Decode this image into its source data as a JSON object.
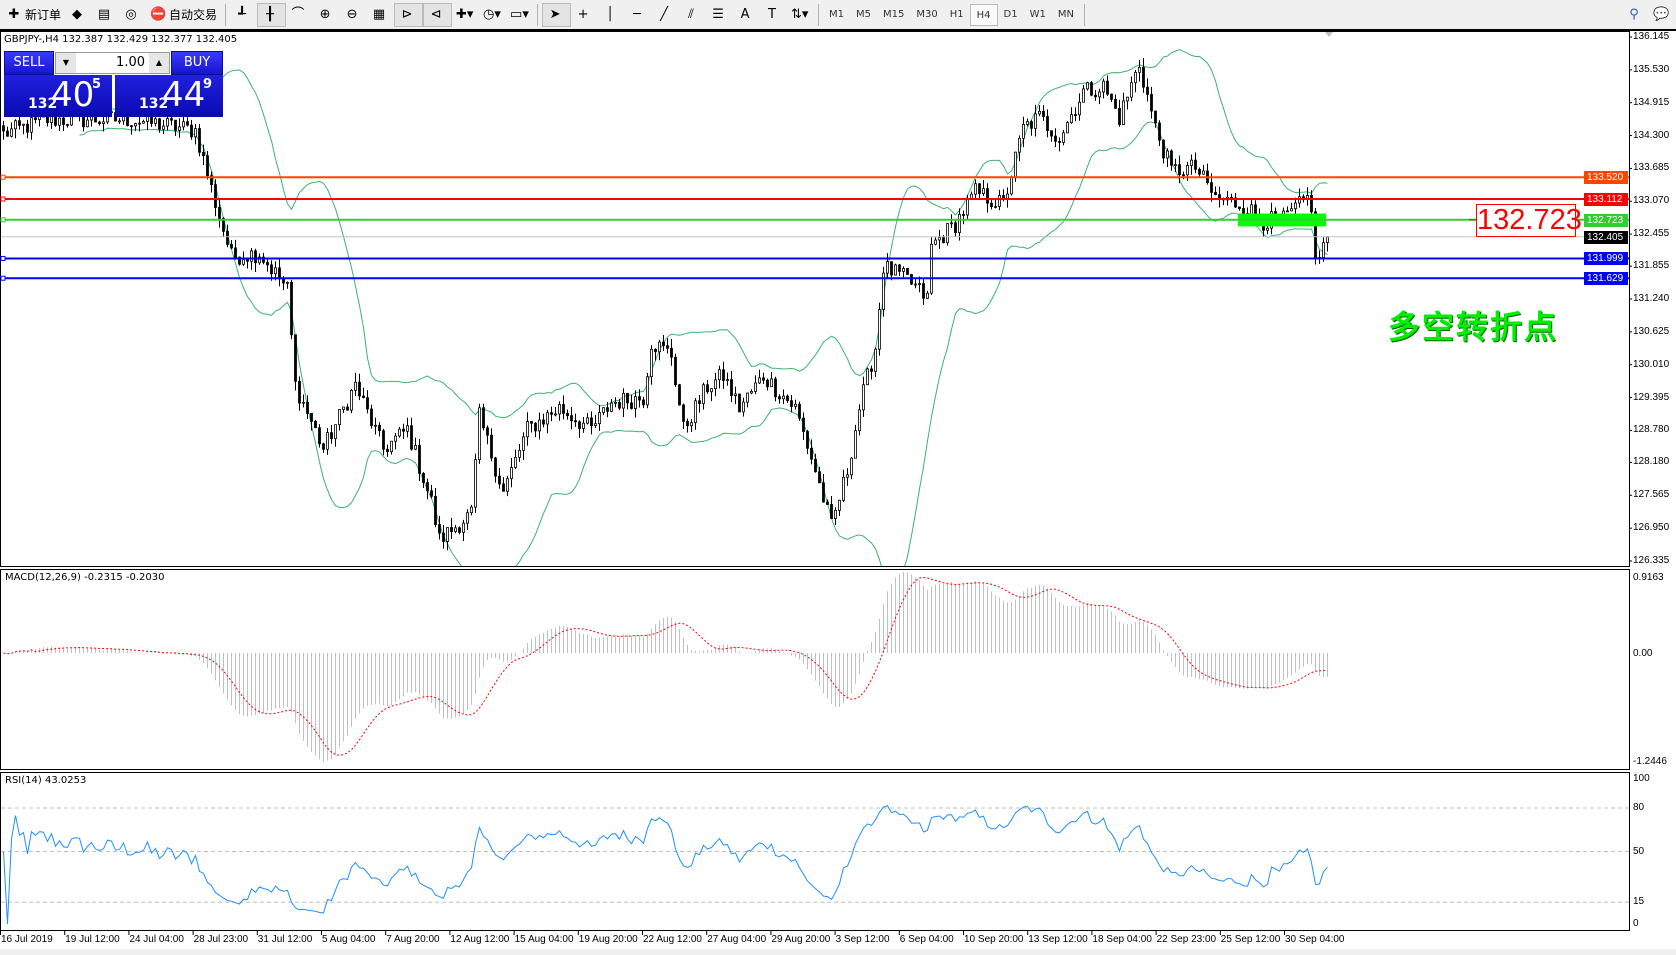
{
  "toolbar": {
    "left": [
      {
        "label": "新订单",
        "icon": "new-order-icon",
        "glyph": "✚"
      },
      {
        "label": "",
        "icon": "market-watch-icon",
        "glyph": "◆"
      },
      {
        "label": "",
        "icon": "navigator-icon",
        "glyph": "▤"
      },
      {
        "label": "",
        "icon": "signals-icon",
        "glyph": "◎"
      },
      {
        "label": "自动交易",
        "icon": "auto-trading-icon",
        "glyph": "⛔"
      }
    ],
    "chart_tools": [
      {
        "icon": "bar-chart-icon",
        "glyph": "┹"
      },
      {
        "icon": "candlestick-icon",
        "glyph": "╂",
        "active": true
      },
      {
        "icon": "line-chart-icon",
        "glyph": "⌒"
      },
      {
        "icon": "zoom-in-icon",
        "glyph": "⊕"
      },
      {
        "icon": "zoom-out-icon",
        "glyph": "⊖"
      },
      {
        "icon": "tile-windows-icon",
        "glyph": "▦"
      },
      {
        "icon": "autoscroll-icon",
        "glyph": "⊳",
        "active": true
      },
      {
        "icon": "chart-shift-icon",
        "glyph": "⊲",
        "active": true
      },
      {
        "icon": "indicators-icon",
        "glyph": "✚▾"
      },
      {
        "icon": "periods-icon",
        "glyph": "◷▾"
      },
      {
        "icon": "templates-icon",
        "glyph": "▭▾"
      }
    ],
    "draw_tools": [
      {
        "icon": "cursor-icon",
        "glyph": "➤",
        "active": true
      },
      {
        "icon": "crosshair-icon",
        "glyph": "+"
      },
      {
        "icon": "vertical-line-icon",
        "glyph": "│"
      },
      {
        "icon": "horizontal-line-icon",
        "glyph": "─"
      },
      {
        "icon": "trendline-icon",
        "glyph": "╱"
      },
      {
        "icon": "equidistant-channel-icon",
        "glyph": "⫽"
      },
      {
        "icon": "fibonacci-icon",
        "glyph": "☰"
      },
      {
        "icon": "text-icon",
        "glyph": "A"
      },
      {
        "icon": "text-label-icon",
        "glyph": "T"
      },
      {
        "icon": "arrows-icon",
        "glyph": "⇅▾"
      }
    ],
    "timeframes": [
      "M1",
      "M5",
      "M15",
      "M30",
      "H1",
      "H4",
      "D1",
      "W1",
      "MN"
    ],
    "active_timeframe": "H4",
    "right": [
      {
        "icon": "search-icon",
        "glyph": "⚲"
      },
      {
        "icon": "chat-icon",
        "glyph": "💬"
      }
    ]
  },
  "chart": {
    "header": "GBPJPY-,H4  132.387 132.429 132.377 132.405",
    "trade_panel": {
      "sell_label": "SELL",
      "buy_label": "BUY",
      "lot": "1.00",
      "sell_prefix": "132",
      "sell_big": "40",
      "sell_sup": "5",
      "buy_prefix": "132",
      "buy_big": "44",
      "buy_sup": "9"
    },
    "price_axis": [
      "136.145",
      "135.530",
      "134.915",
      "134.300",
      "133.685",
      "133.070",
      "132.455",
      "131.855",
      "131.240",
      "130.625",
      "130.010",
      "129.395",
      "128.780",
      "128.180",
      "127.565",
      "126.950",
      "126.335"
    ],
    "price_range": [
      126.335,
      136.145
    ],
    "hlines": [
      {
        "price": 133.52,
        "label": "133.520",
        "color": "#ff4500"
      },
      {
        "price": 133.112,
        "label": "133.112",
        "color": "#ff0000"
      },
      {
        "price": 132.723,
        "label": "132.723",
        "color": "#32cd32"
      },
      {
        "price": 132.405,
        "label": "132.405",
        "color": "#c0c0c0",
        "tag_color": "#000000"
      },
      {
        "price": 131.999,
        "label": "131.999",
        "color": "#0000ff"
      },
      {
        "price": 131.629,
        "label": "131.629",
        "color": "#0000ff"
      }
    ],
    "price_callout": "132.723",
    "annotation": "多空转折点",
    "zone": {
      "from_bar": 309,
      "to_bar": 331,
      "top": 132.84,
      "bottom": 132.6,
      "color": "#00ff00"
    },
    "close_path": [
      [
        0,
        134.33
      ],
      [
        11,
        134.6
      ],
      [
        32,
        134.6
      ],
      [
        48,
        134.4
      ],
      [
        53,
        133.04
      ],
      [
        57,
        132.04
      ],
      [
        64,
        132.1
      ],
      [
        71,
        131.43
      ],
      [
        73,
        129.63
      ],
      [
        80,
        128.43
      ],
      [
        88,
        129.63
      ],
      [
        95,
        128.43
      ],
      [
        101,
        128.8
      ],
      [
        107,
        127.44
      ],
      [
        109,
        126.73
      ],
      [
        117,
        127.23
      ],
      [
        119,
        129.03
      ],
      [
        125,
        127.63
      ],
      [
        131,
        128.8
      ],
      [
        139,
        129.2
      ],
      [
        147,
        128.8
      ],
      [
        152,
        129.3
      ],
      [
        160,
        129.4
      ],
      [
        162,
        130.43
      ],
      [
        167,
        130.2
      ],
      [
        170,
        128.8
      ],
      [
        176,
        129.6
      ],
      [
        180,
        129.8
      ],
      [
        184,
        129.2
      ],
      [
        190,
        129.8
      ],
      [
        198,
        129.2
      ],
      [
        203,
        128.03
      ],
      [
        207,
        126.98
      ],
      [
        211,
        128.03
      ],
      [
        214,
        129.2
      ],
      [
        218,
        130.33
      ],
      [
        220,
        131.84
      ],
      [
        226,
        131.6
      ],
      [
        231,
        131.25
      ],
      [
        232,
        132.23
      ],
      [
        238,
        132.65
      ],
      [
        243,
        133.24
      ],
      [
        250,
        133.0
      ],
      [
        255,
        134.44
      ],
      [
        259,
        134.64
      ],
      [
        264,
        134.26
      ],
      [
        270,
        135.13
      ],
      [
        275,
        135.22
      ],
      [
        279,
        134.64
      ],
      [
        284,
        135.64
      ],
      [
        288,
        134.44
      ],
      [
        292,
        133.64
      ],
      [
        298,
        133.7
      ],
      [
        303,
        133.13
      ],
      [
        310,
        133.0
      ],
      [
        315,
        132.7
      ],
      [
        320,
        132.72
      ],
      [
        326,
        133.12
      ],
      [
        327,
        133.0
      ],
      [
        328,
        131.9
      ],
      [
        331,
        132.405
      ]
    ],
    "bands_color": "#3cb371",
    "macd": {
      "label": "MACD(12,26,9) -0.2315 -0.2030",
      "axis": [
        "0.9163",
        "0.00",
        "-1.2446"
      ],
      "hist_color": "#c0c0c0",
      "signal_color": "#ff0000"
    },
    "rsi": {
      "label": "RSI(14) 43.0253",
      "axis": [
        "100",
        "80",
        "50",
        "15",
        "0"
      ],
      "levels": [
        80,
        50,
        15
      ],
      "color": "#1e90ff"
    },
    "time_axis": [
      "16 Jul 2019",
      "19 Jul 12:00",
      "24 Jul 04:00",
      "28 Jul 23:00",
      "31 Jul 12:00",
      "5 Aug 04:00",
      "7 Aug 20:00",
      "12 Aug 12:00",
      "15 Aug 04:00",
      "19 Aug 20:00",
      "22 Aug 12:00",
      "27 Aug 04:00",
      "29 Aug 20:00",
      "3 Sep 12:00",
      "6 Sep 04:00",
      "10 Sep 20:00",
      "13 Sep 12:00",
      "18 Sep 04:00",
      "22 Sep 23:00",
      "25 Sep 12:00",
      "30 Sep 04:00"
    ]
  }
}
